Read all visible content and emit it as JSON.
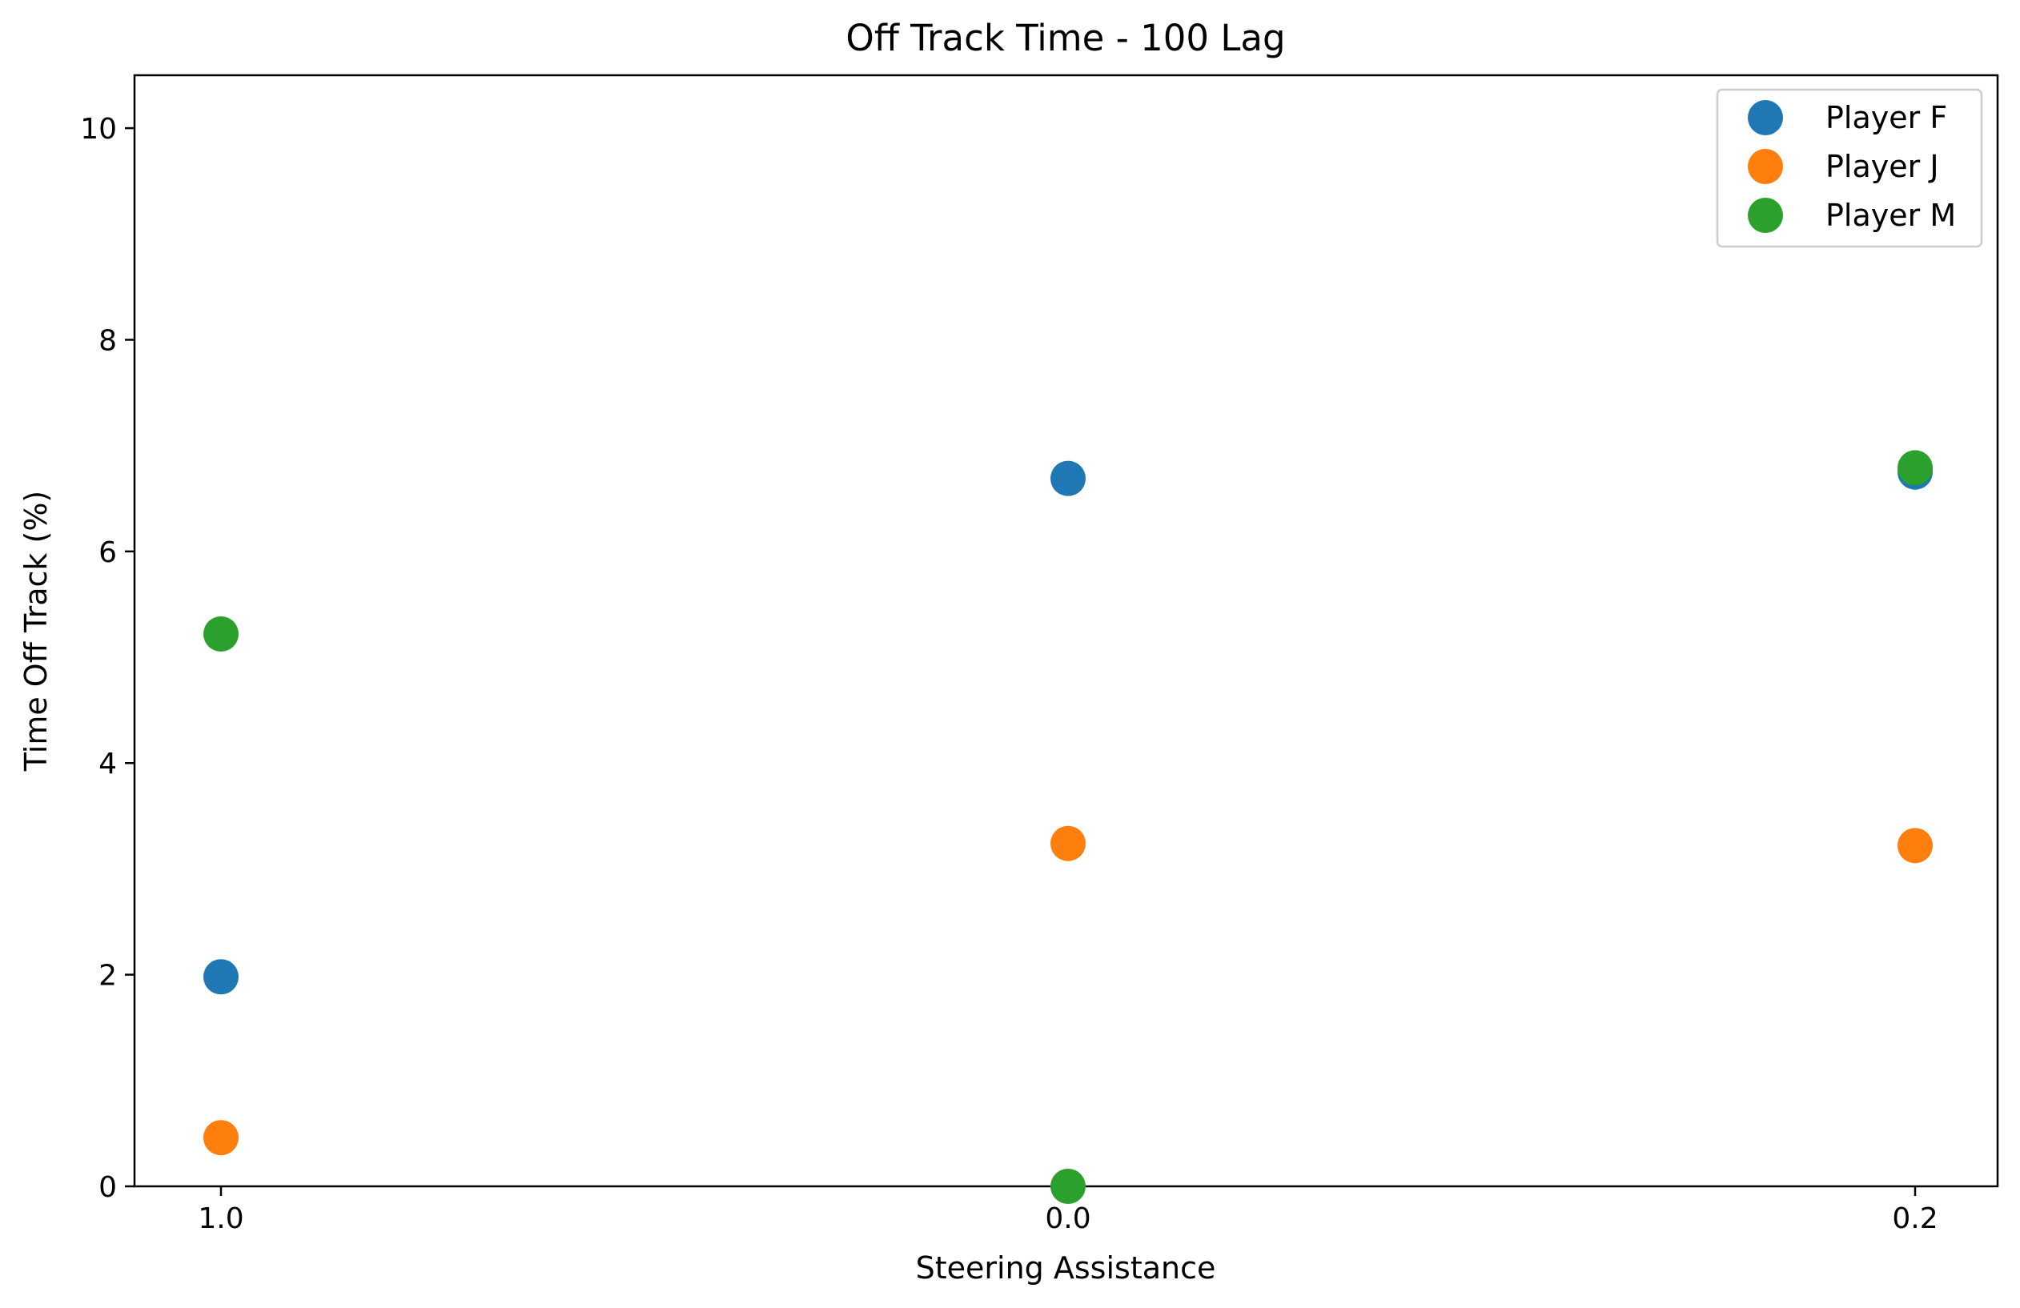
{
  "chart_data": {
    "type": "scatter",
    "title": "Off Track Time - 100 Lag",
    "xlabel": "Steering Assistance",
    "ylabel": "Time Off Track (%)",
    "categories": [
      "1.0",
      "0.0",
      "0.2"
    ],
    "ylim": [
      0,
      10.5
    ],
    "yticks": [
      "0",
      "2",
      "4",
      "6",
      "8",
      "10"
    ],
    "grid": false,
    "legend_position": "top-right",
    "series": [
      {
        "name": "Player F",
        "color": "#1f77b4",
        "values": [
          1.98,
          6.69,
          6.75
        ]
      },
      {
        "name": "Player J",
        "color": "#ff7f0e",
        "values": [
          0.46,
          3.24,
          3.22
        ]
      },
      {
        "name": "Player M",
        "color": "#2ca02c",
        "values": [
          5.22,
          0.0,
          6.79
        ]
      }
    ]
  }
}
